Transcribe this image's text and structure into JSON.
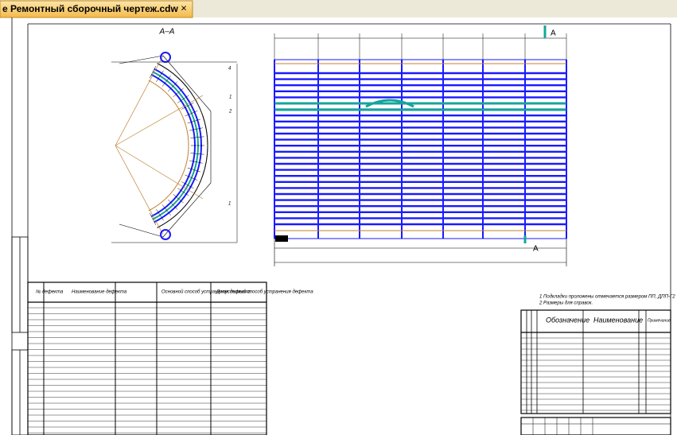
{
  "tab": {
    "title": "е Ремонтный сборочный чертеж.cdw",
    "close": "×"
  },
  "drawing": {
    "section": "А–А",
    "cut_marks": [
      "А",
      "А"
    ],
    "positions": [
      "4",
      "1",
      "2",
      "1"
    ],
    "notes": [
      "1 Подкладки проложены отмечается размером ПП, ДПП-Г2",
      "2  Размеры для справок."
    ]
  },
  "defects_table": {
    "headers": [
      "№ дефекта",
      "Наименование дефекта",
      "Основной способ устранения дефекта",
      "Допустимый способ устранения дефекта"
    ]
  },
  "spec_table": {
    "headers": [
      "Обозначение",
      "Наименование",
      "Примечание"
    ]
  }
}
